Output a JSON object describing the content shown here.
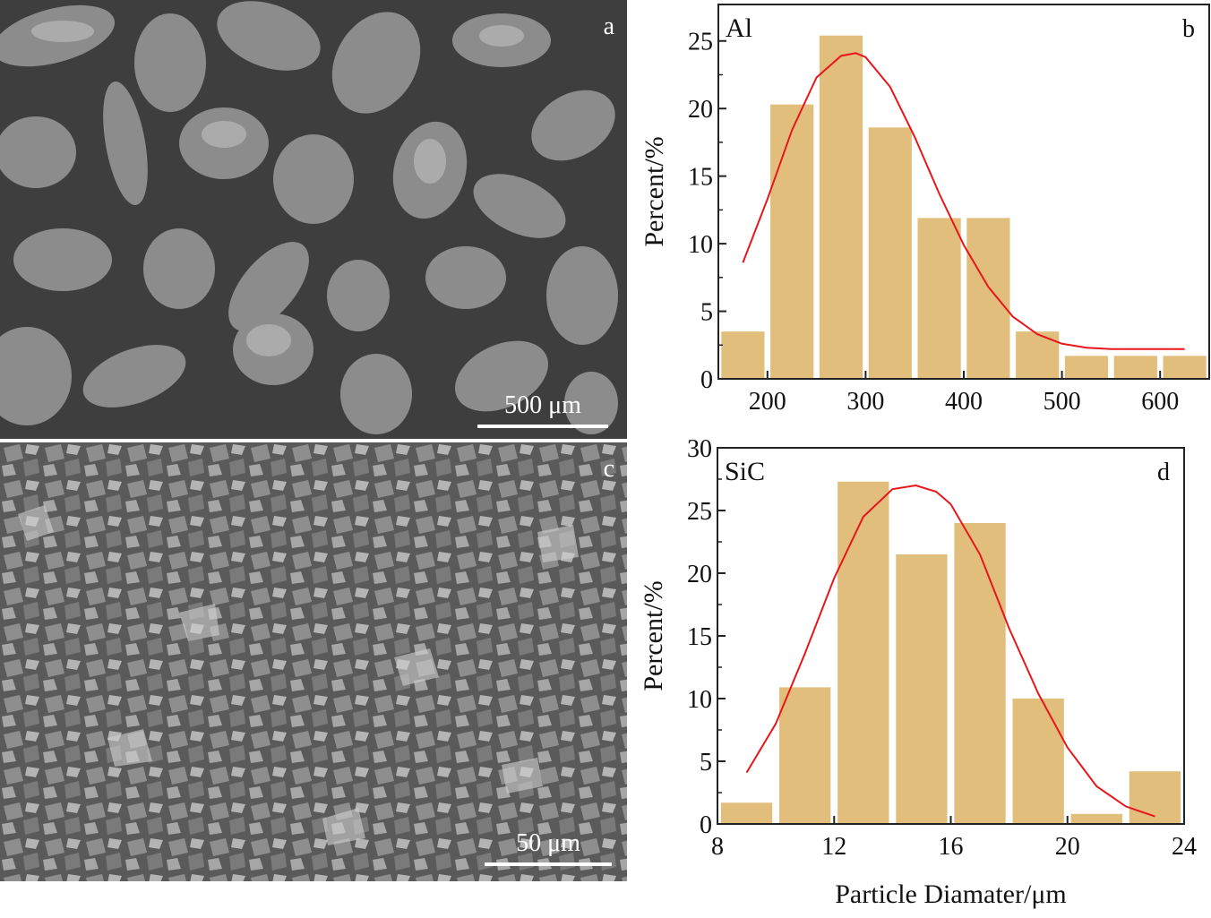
{
  "panels": {
    "a": {
      "letter": "a",
      "scalebar": "500 μm"
    },
    "c": {
      "letter": "c",
      "scalebar": "50 μm"
    }
  },
  "colors": {
    "bar": "#e2be7d",
    "curve": "#e8161b",
    "axis": "#222222",
    "sem_background": "#4a4a4a"
  },
  "chart_data": [
    {
      "type": "bar",
      "panel_letter": "b",
      "material_label": "Al",
      "ylabel": "Percent/%",
      "xlabel": "",
      "x": [
        175,
        225,
        275,
        325,
        375,
        425,
        475,
        525,
        575,
        625
      ],
      "values": [
        3.5,
        20.3,
        25.4,
        18.6,
        11.9,
        11.9,
        3.5,
        1.7,
        1.7,
        1.7
      ],
      "xlim": [
        150,
        650
      ],
      "ylim": [
        0,
        27.7
      ],
      "xticks": [
        200,
        300,
        400,
        500,
        600
      ],
      "yticks": [
        0,
        5,
        10,
        15,
        20,
        25
      ],
      "fit_curve": {
        "type": "gaussian",
        "x": [
          175,
          200,
          225,
          250,
          275,
          290,
          300,
          325,
          350,
          375,
          400,
          425,
          450,
          475,
          500,
          525,
          550,
          575,
          600,
          625
        ],
        "y": [
          8.6,
          13.3,
          18.4,
          22.3,
          23.9,
          24.1,
          23.8,
          21.6,
          17.9,
          13.7,
          9.9,
          6.8,
          4.6,
          3.3,
          2.6,
          2.3,
          2.2,
          2.2,
          2.2,
          2.2
        ]
      },
      "grid": false
    },
    {
      "type": "bar",
      "panel_letter": "d",
      "material_label": "SiC",
      "ylabel": "Percent/%",
      "xlabel": "Particle Diamater/μm",
      "x": [
        9,
        11,
        13,
        15,
        17,
        19,
        21,
        23
      ],
      "values": [
        1.7,
        10.9,
        27.3,
        21.5,
        24.0,
        10.0,
        0.8,
        4.2
      ],
      "xlim": [
        8,
        24
      ],
      "ylim": [
        0,
        30
      ],
      "xticks": [
        8,
        12,
        16,
        20,
        24
      ],
      "yticks": [
        0,
        5,
        10,
        15,
        20,
        25,
        30
      ],
      "fit_curve": {
        "type": "gaussian",
        "x": [
          9,
          10,
          11,
          12,
          13,
          14,
          14.8,
          15.5,
          16,
          17,
          18,
          19,
          20,
          21,
          22,
          23
        ],
        "y": [
          4.1,
          8.0,
          13.6,
          19.6,
          24.5,
          26.7,
          27.0,
          26.5,
          25.5,
          21.5,
          15.6,
          10.4,
          6.1,
          3.0,
          1.4,
          0.6
        ]
      },
      "grid": false
    }
  ]
}
